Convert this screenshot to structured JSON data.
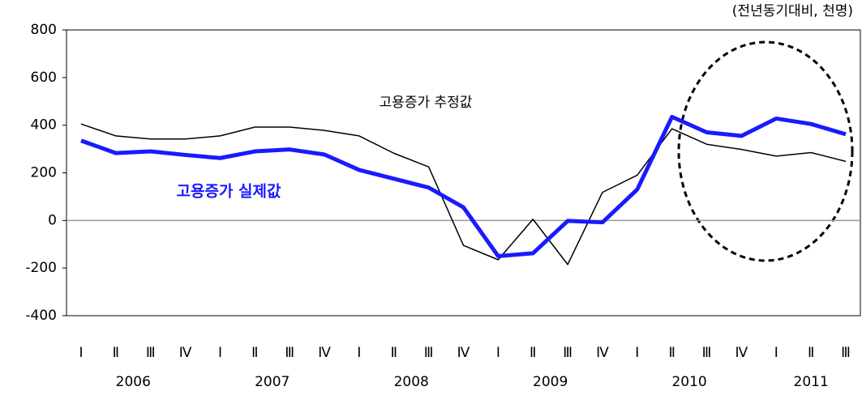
{
  "chart_data": {
    "type": "line",
    "unit_note": "(전년동기대비, 천명)",
    "categories": [
      "Ⅰ",
      "Ⅱ",
      "Ⅲ",
      "Ⅳ",
      "Ⅰ",
      "Ⅱ",
      "Ⅲ",
      "Ⅳ",
      "Ⅰ",
      "Ⅱ",
      "Ⅲ",
      "Ⅳ",
      "Ⅰ",
      "Ⅱ",
      "Ⅲ",
      "Ⅳ",
      "Ⅰ",
      "Ⅱ",
      "Ⅲ",
      "Ⅳ",
      "Ⅰ",
      "Ⅱ",
      "Ⅲ"
    ],
    "years": [
      "2006",
      "2007",
      "2008",
      "2009",
      "2010",
      "2011"
    ],
    "series": [
      {
        "name": "고용증가 추정값",
        "color": "#000000",
        "width": 1.5,
        "values": [
          405,
          355,
          342,
          342,
          355,
          392,
          392,
          378,
          355,
          282,
          225,
          -105,
          -165,
          5,
          -185,
          118,
          190,
          385,
          320,
          298,
          270,
          285,
          248
        ]
      },
      {
        "name": "고용증가 실제값",
        "color": "#1a1aff",
        "width": 5,
        "values": [
          335,
          283,
          290,
          275,
          262,
          290,
          298,
          277,
          212,
          175,
          138,
          55,
          -150,
          -138,
          -2,
          -8,
          130,
          435,
          370,
          355,
          428,
          405,
          362
        ]
      }
    ],
    "ylim": [
      -400,
      800
    ],
    "yticks": [
      -400,
      -200,
      0,
      200,
      400,
      600,
      800
    ]
  }
}
